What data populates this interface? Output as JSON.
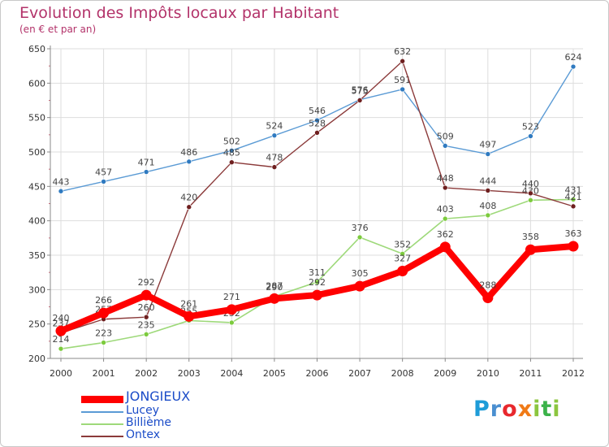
{
  "header": {
    "title": "Evolution des Impôts locaux par Habitant",
    "subtitle": "(en € et par an)"
  },
  "brand": {
    "logo_letters": [
      {
        "ch": "P",
        "color": "#1e9cd8"
      },
      {
        "ch": "r",
        "color": "#4a8fd0"
      },
      {
        "ch": "o",
        "color": "#e8282d"
      },
      {
        "ch": "x",
        "color": "#f07a16"
      },
      {
        "ch": "i",
        "color": "#8cc63f"
      },
      {
        "ch": "t",
        "color": "#3bb24a"
      },
      {
        "ch": "i",
        "color": "#8cc63f"
      }
    ]
  },
  "colors": {
    "axis": "#888888",
    "grid": "#dddddd",
    "tick_text": "#333333",
    "label_text": "#444444"
  },
  "chart_data": {
    "type": "line",
    "title": "Evolution des Impôts locaux par Habitant",
    "subtitle": "(en € et par an)",
    "xlabel": "",
    "ylabel": "",
    "categories": [
      "2000",
      "2001",
      "2002",
      "2003",
      "2004",
      "2005",
      "2006",
      "2007",
      "2008",
      "2009",
      "2010",
      "2011",
      "2012"
    ],
    "ylim": [
      200,
      650
    ],
    "yticks": [
      200,
      250,
      300,
      350,
      400,
      450,
      500,
      550,
      600,
      650
    ],
    "grid": true,
    "legend_position": "bottom-left",
    "series": [
      {
        "name": "Lucey",
        "color": "#5b9bd5",
        "dot": "#2f7ac0",
        "width": 1.4,
        "values": [
          443,
          457,
          471,
          486,
          502,
          524,
          546,
          576,
          591,
          509,
          497,
          523,
          624
        ]
      },
      {
        "name": "Billième",
        "color": "#9ed97a",
        "dot": "#7ccb3d",
        "width": 1.6,
        "values": [
          214,
          223,
          235,
          255,
          252,
          290,
          311,
          376,
          352,
          403,
          408,
          430,
          431
        ]
      },
      {
        "name": "Ontex",
        "color": "#8b3a3a",
        "dot": "#6e1f1f",
        "width": 1.4,
        "values": [
          237,
          257,
          260,
          420,
          485,
          478,
          528,
          575,
          632,
          448,
          444,
          440,
          421
        ]
      },
      {
        "name": "JONGIEUX",
        "color": "#ff0000",
        "dot": "#ff0000",
        "width": 8,
        "values": [
          240,
          266,
          292,
          261,
          271,
          287,
          292,
          305,
          327,
          362,
          288,
          358,
          363
        ]
      }
    ],
    "legend_order": [
      "JONGIEUX",
      "Lucey",
      "Billième",
      "Ontex"
    ]
  }
}
